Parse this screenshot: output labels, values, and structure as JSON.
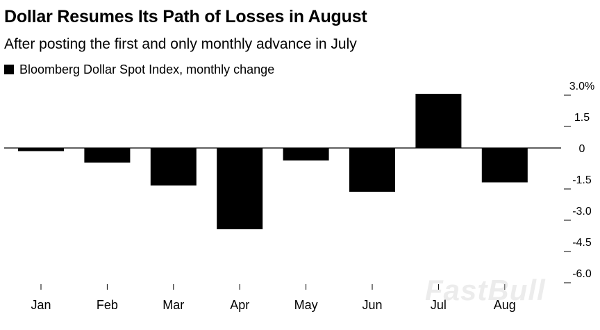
{
  "title": "Dollar Resumes Its Path of Losses in August",
  "subtitle": "After posting the first and only monthly advance in July",
  "legend_label": "Bloomberg Dollar Spot Index, monthly change",
  "watermark": "FastBull",
  "chart_data": {
    "type": "bar",
    "title": "Dollar Resumes Its Path of Losses in August",
    "subtitle": "After posting the first and only monthly advance in July",
    "categories": [
      "Jan",
      "Feb",
      "Mar",
      "Apr",
      "May",
      "Jun",
      "Jul",
      "Aug"
    ],
    "series": [
      {
        "name": "Bloomberg Dollar Spot Index, monthly change",
        "color": "#000000",
        "values": [
          -0.15,
          -0.7,
          -1.8,
          -3.9,
          -0.6,
          -2.1,
          2.6,
          -1.65
        ]
      }
    ],
    "ylim": [
      -6.0,
      3.0
    ],
    "yticks": [
      3.0,
      1.5,
      0,
      -1.5,
      -3.0,
      -4.5,
      -6.0
    ],
    "ytick_labels": [
      "3.0%",
      "1.5",
      "0",
      "-1.5",
      "-3.0",
      "-4.5",
      "-6.0"
    ],
    "xlabel": "",
    "ylabel": "",
    "y_axis_side": "right",
    "grid": false,
    "legend_position": "top-left"
  }
}
